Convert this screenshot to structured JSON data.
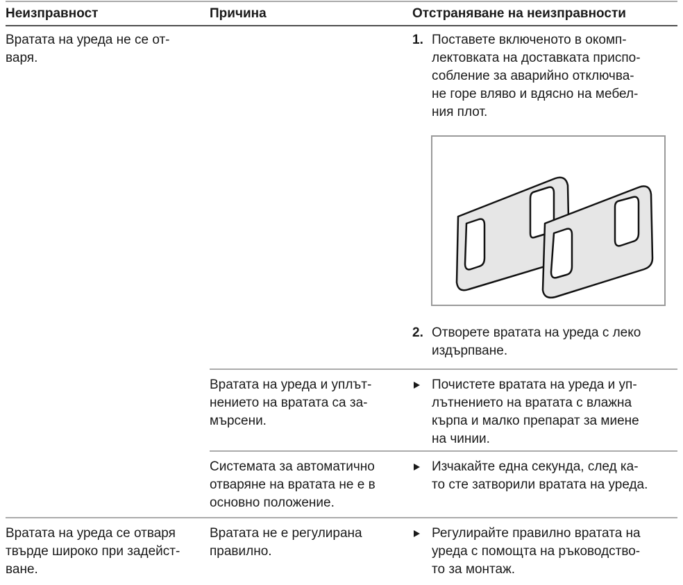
{
  "table": {
    "header": [
      "Неизправност",
      "Причина",
      "Отстраняване на неизправности"
    ],
    "rows": [
      {
        "fault": [
          "Вратата на уреда не се от-",
          "варя."
        ],
        "remedy": {
          "steps": [
            {
              "number": "1.",
              "lines": [
                "Поставете включеното в окомп-",
                "лектовката на доставката приспо-",
                "собление за аварийно отключва-",
                "не горе вляво и вдясно на мебел-",
                "ния плот."
              ]
            },
            {
              "number": "2.",
              "lines": [
                "Отворете вратата на уреда с леко",
                "издърпване."
              ]
            }
          ]
        }
      },
      {
        "cause": [
          "Вратата на уреда и уплът-",
          "нението на вратата са за-",
          "мърсени."
        ],
        "remedy": {
          "lines": [
            "Почистете вратата на уреда и уп-",
            "лътнението на вратата с влажна",
            "кърпа и малко препарат за миене",
            "на чинии."
          ]
        }
      },
      {
        "cause": [
          "Системата за автоматично",
          "отваряне на вратата не е в",
          "основно положение."
        ],
        "remedy": {
          "lines": [
            "Изчакайте една секунда, след ка-",
            "то сте затворили вратата на уреда."
          ]
        }
      },
      {
        "fault": [
          "Вратата на уреда се отваря",
          "твърде широко при задейст-",
          "ване."
        ],
        "cause": [
          "Вратата не е регулирана",
          "правилно."
        ],
        "remedy": {
          "lines": [
            "Регулирайте правилно вратата на",
            "уреда с помощта на ръководство-",
            "то за монтаж."
          ]
        }
      }
    ]
  }
}
